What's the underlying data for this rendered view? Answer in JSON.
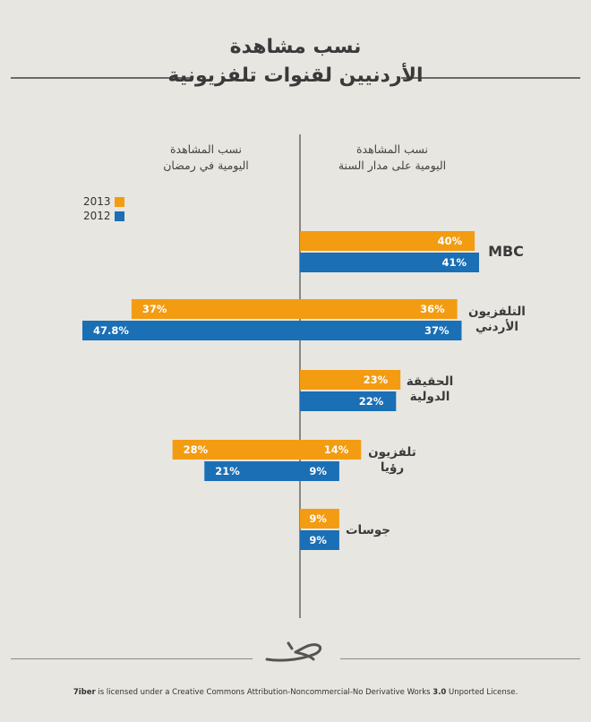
{
  "title": {
    "line1": "نسب مشاهدة",
    "line2": "الأردنيين لقنوات تلفزيونية"
  },
  "columns": {
    "left": [
      "نسب المشاهدة",
      "اليومية في رمضان"
    ],
    "right": [
      "نسب المشاهدة",
      "اليومية على مدار السنة"
    ]
  },
  "legend": [
    {
      "label": "2013",
      "color": "#f39c12"
    },
    {
      "label": "2012",
      "color": "#1a6fb5"
    }
  ],
  "colors": {
    "2013": "#f39c12",
    "2012": "#1a6fb5",
    "axis": "#555555"
  },
  "chart_data": {
    "type": "bar",
    "series_names": [
      "2013",
      "2012"
    ],
    "categories": [
      {
        "name": [
          "MBC"
        ],
        "year_round": {
          "2013": 40,
          "2012": 41
        },
        "ramadan": {
          "2013": null,
          "2012": null
        }
      },
      {
        "name": [
          "التلفزيون",
          "الأردني"
        ],
        "year_round": {
          "2013": 36,
          "2012": 37
        },
        "ramadan": {
          "2013": 37,
          "2012": 47.8
        }
      },
      {
        "name": [
          "الحقيقة",
          "الدولية"
        ],
        "year_round": {
          "2013": 23,
          "2012": 22
        },
        "ramadan": {
          "2013": null,
          "2012": null
        }
      },
      {
        "name": [
          "تلفزيون",
          "رؤيا"
        ],
        "year_round": {
          "2013": 14,
          "2012": 9
        },
        "ramadan": {
          "2013": 28,
          "2012": 21
        }
      },
      {
        "name": [
          "جوسات"
        ],
        "year_round": {
          "2013": 9,
          "2012": 9
        },
        "ramadan": {
          "2013": null,
          "2012": null
        }
      }
    ],
    "value_labels": {
      "MBC": {
        "year_2013": "40%",
        "year_2012": "41%"
      },
      "jordan_tv": {
        "year_2013": "36%",
        "year_2012": "37%",
        "ramadan_2013": "37%",
        "ramadan_2012": "47.8%"
      },
      "haqiqa": {
        "year_2013": "23%",
        "year_2012": "22%"
      },
      "roya": {
        "year_2013": "14%",
        "year_2012": "9%",
        "ramadan_2013": "28%",
        "ramadan_2012": "21%"
      },
      "jawsat": {
        "year_2013": "9%",
        "year_2012": "9%"
      }
    }
  },
  "footer": {
    "license_brand": "7iber",
    "license_text": " is licensed under a Creative Commons Attribution-Noncommercial-No Derivative Works ",
    "license_version": "3.0",
    "license_tail": " Unported License."
  }
}
